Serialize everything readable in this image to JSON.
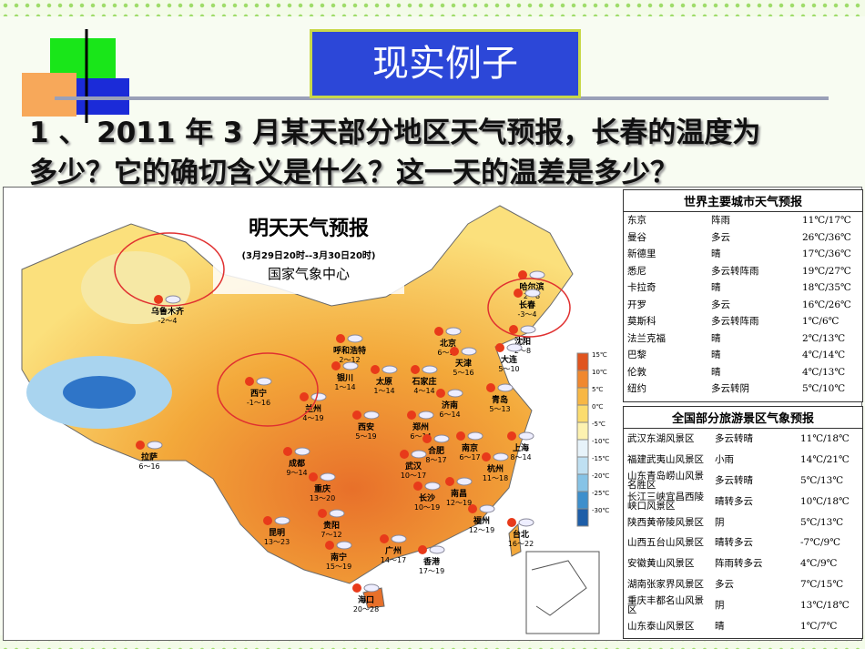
{
  "header": {
    "title": "现实例子",
    "question_lines": [
      "1 、 2011 年 3 月某天部分地区天气预报，长春的温度为",
      "多少？它的确切含义是什么？这一天的温差是多少？"
    ]
  },
  "map": {
    "title": "明天天气预报",
    "subtitle": "(3月29日20时--3月30日20时)",
    "agency": "国家气象中心",
    "legend": [
      "15℃",
      "10℃",
      "5℃",
      "0℃",
      "-5℃",
      "-10℃",
      "-15℃",
      "-20℃",
      "-25℃",
      "-30℃"
    ],
    "cities": [
      {
        "name": "乌鲁木齐",
        "temp": "-2～4"
      },
      {
        "name": "哈尔滨",
        "temp": "2～8"
      },
      {
        "name": "长春",
        "temp": "-3～4"
      },
      {
        "name": "沈阳",
        "temp": "2～8"
      },
      {
        "name": "大连",
        "temp": "5～10"
      },
      {
        "name": "呼和浩特",
        "temp": "2～12"
      },
      {
        "name": "北京",
        "temp": "6～17"
      },
      {
        "name": "天津",
        "temp": "5～16"
      },
      {
        "name": "银川",
        "temp": "1～14"
      },
      {
        "name": "太原",
        "temp": "1～14"
      },
      {
        "name": "石家庄",
        "temp": "4～14"
      },
      {
        "name": "济南",
        "temp": "6～14"
      },
      {
        "name": "青岛",
        "temp": "5～13"
      },
      {
        "name": "西宁",
        "temp": "-1～16"
      },
      {
        "name": "兰州",
        "temp": "4～19"
      },
      {
        "name": "西安",
        "temp": "5～19"
      },
      {
        "name": "郑州",
        "temp": "6～14"
      },
      {
        "name": "拉萨",
        "temp": "6～16"
      },
      {
        "name": "成都",
        "temp": "9～14"
      },
      {
        "name": "合肥",
        "temp": "8～17"
      },
      {
        "name": "南京",
        "temp": "6～17"
      },
      {
        "name": "上海",
        "temp": "8～14"
      },
      {
        "name": "武汉",
        "temp": "10～17"
      },
      {
        "name": "杭州",
        "temp": "11～18"
      },
      {
        "name": "重庆",
        "temp": "13～20"
      },
      {
        "name": "长沙",
        "temp": "10～19"
      },
      {
        "name": "南昌",
        "temp": "12～19"
      },
      {
        "name": "福州",
        "temp": "12～19"
      },
      {
        "name": "贵阳",
        "temp": "7～12"
      },
      {
        "name": "昆明",
        "temp": "13～23"
      },
      {
        "name": "台北",
        "temp": "16～22"
      },
      {
        "name": "广州",
        "temp": "14～17"
      },
      {
        "name": "南宁",
        "temp": "15～19"
      },
      {
        "name": "香港",
        "temp": "17～19"
      },
      {
        "name": "海口",
        "temp": "20～28"
      }
    ]
  },
  "world_table": {
    "title": "世界主要城市天气预报",
    "rows": [
      [
        "东京",
        "阵雨",
        "11℃/17℃"
      ],
      [
        "曼谷",
        "多云",
        "26℃/36℃"
      ],
      [
        "新德里",
        "晴",
        "17℃/36℃"
      ],
      [
        "悉尼",
        "多云转阵雨",
        "19℃/27℃"
      ],
      [
        "卡拉奇",
        "晴",
        "18℃/35℃"
      ],
      [
        "开罗",
        "多云",
        "16℃/26℃"
      ],
      [
        "莫斯科",
        "多云转阵雨",
        "1℃/6℃"
      ],
      [
        "法兰克福",
        "晴",
        "2℃/13℃"
      ],
      [
        "巴黎",
        "晴",
        "4℃/14℃"
      ],
      [
        "伦敦",
        "晴",
        "4℃/13℃"
      ],
      [
        "纽约",
        "多云转阴",
        "5℃/10℃"
      ]
    ]
  },
  "tourism_table": {
    "title": "全国部分旅游景区气象预报",
    "rows": [
      [
        "武汉东湖风景区",
        "多云转晴",
        "11℃/18℃"
      ],
      [
        "福建武夷山风景区",
        "小雨",
        "14℃/21℃"
      ],
      [
        "山东青岛崂山风景名胜区",
        "多云转晴",
        "5℃/13℃"
      ],
      [
        "长江三峡宜昌西陵峡口风景区",
        "晴转多云",
        "10℃/18℃"
      ],
      [
        "陕西黄帝陵风景区",
        "阴",
        "5℃/13℃"
      ],
      [
        "山西五台山风景区",
        "晴转多云",
        "-7℃/9℃"
      ],
      [
        "安徽黄山风景区",
        "阵雨转多云",
        "4℃/9℃"
      ],
      [
        "湖南张家界风景区",
        "多云",
        "7℃/15℃"
      ],
      [
        "重庆丰都名山风景区",
        "阴",
        "13℃/18℃"
      ],
      [
        "山东泰山风景区",
        "晴",
        "1℃/7℃"
      ]
    ]
  }
}
